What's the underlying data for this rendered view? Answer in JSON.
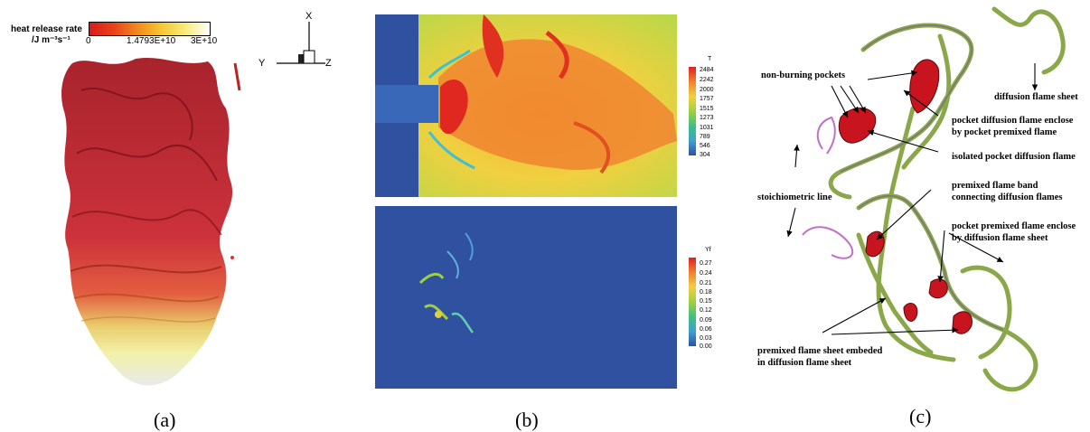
{
  "panel_a": {
    "caption": "(a)",
    "colorbar_title_line1": "heat release rate",
    "colorbar_title_line2": "/J m⁻³s⁻¹",
    "colorbar_ticks": [
      "0",
      "1.4793E+10",
      "3E+10"
    ],
    "axis_labels": {
      "x": "X",
      "y": "Y",
      "z": "Z"
    }
  },
  "panel_b": {
    "caption": "(b)",
    "top_legend_title": "T",
    "top_legend_ticks": [
      "2484",
      "2242",
      "2000",
      "1757",
      "1515",
      "1273",
      "1031",
      "789",
      "546",
      "304"
    ],
    "bottom_legend_title": "Yf",
    "bottom_legend_ticks": [
      "0.27",
      "0.24",
      "0.21",
      "0.18",
      "0.15",
      "0.12",
      "0.09",
      "0.06",
      "0.03",
      "0.00"
    ]
  },
  "panel_c": {
    "caption": "(c)",
    "annotations": {
      "non_burning": "non-burning pockets",
      "diffusion_sheet": "diffusion flame sheet",
      "pocket_diff_1": "pocket diffusion flame enclose",
      "pocket_diff_2": "by pocket premixed flame",
      "isolated": "isolated pocket diffusion flame",
      "stoich": "stoichiometric line",
      "band_1": "premixed flame band",
      "band_2": "connecting diffusion flames",
      "pocket_premixed_1": "pocket premixed flame enclose",
      "pocket_premixed_2": "by diffusion flame sheet",
      "embedded_1": "premixed flame sheet embeded",
      "embedded_2": "in diffusion flame sheet"
    }
  },
  "colors": {
    "background_blue": "#3050a0",
    "flame_red": "#c8141e",
    "flame_green": "#8aa84a",
    "stoich_purple": "#c070c8"
  }
}
